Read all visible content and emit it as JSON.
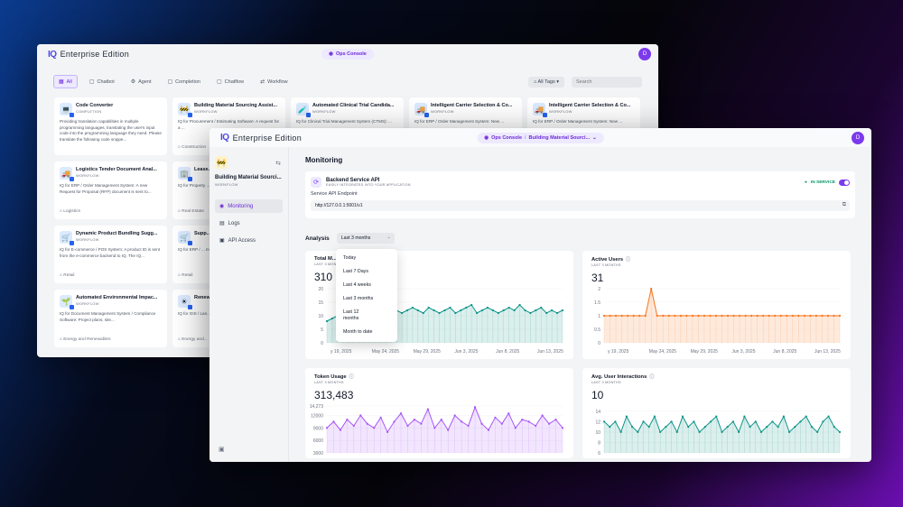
{
  "brand": {
    "logo_mark": "IQ",
    "name": "Enterprise Edition"
  },
  "back_window": {
    "console_label": "Ops Console",
    "avatar": "D",
    "tabs": [
      {
        "label": "All",
        "icon": "grid-icon",
        "active": true
      },
      {
        "label": "Chatbot",
        "icon": "chatbot-icon"
      },
      {
        "label": "Agent",
        "icon": "agent-icon"
      },
      {
        "label": "Completion",
        "icon": "completion-icon"
      },
      {
        "label": "Chatflow",
        "icon": "chatflow-icon"
      },
      {
        "label": "Workflow",
        "icon": "workflow-icon"
      }
    ],
    "tags_label": "All Tags",
    "search_placeholder": "Search",
    "cards": [
      {
        "title": "Code Converter",
        "type": "COMPLETION",
        "desc": "Providing translation capabilities in multiple programming languages, translating the user's input code into the programming language they need. Please translate the following code snippe...",
        "tag": "",
        "icon": "💻"
      },
      {
        "title": "Building Material Sourcing Assist...",
        "type": "WORKFLOW",
        "desc": "IQ for Procurement / Estimating Software: A request for a ...",
        "tag": "Construction",
        "icon": "🚧"
      },
      {
        "title": "Automated Clinical Trial Candida...",
        "type": "WORKFLOW",
        "desc": "IQ for Clinical Trial Management System (CTMS): ...",
        "tag": "",
        "icon": "🧪"
      },
      {
        "title": "Intelligent Carrier Selection & Co...",
        "type": "WORKFLOW",
        "desc": "IQ for ERP / Order Management System: New ...",
        "tag": "",
        "icon": "🚚"
      },
      {
        "title": "Intelligent Carrier Selection & Co...",
        "type": "WORKFLOW",
        "desc": "IQ for ERP / Order Management System: New ...",
        "tag": "",
        "icon": "🚚"
      },
      {
        "title": "Logistics Tender Document Anal...",
        "type": "WORKFLOW",
        "desc": "IQ for ERP / Order Management System: A new Request for Proposal (RFP) document is sent to...",
        "tag": "Logistics",
        "icon": "🚚"
      },
      {
        "title": "Lease...",
        "type": "",
        "desc": "IQ for Property ... lease (PDF) is ...",
        "tag": "Real Estate",
        "icon": "🏢"
      },
      {
        "title": "",
        "type": "",
        "desc": "",
        "tag": "",
        "icon": ""
      },
      {
        "title": "",
        "type": "",
        "desc": "",
        "tag": "",
        "icon": ""
      },
      {
        "title": "",
        "type": "",
        "desc": "",
        "tag": "",
        "icon": ""
      },
      {
        "title": "Dynamic Product Bundling Sugg...",
        "type": "WORKFLOW",
        "desc": "IQ for E-commerce / POS System: A product ID is sent from the e-commerce backend to IQ. The IQ...",
        "tag": "Retail",
        "icon": "🛒"
      },
      {
        "title": "Supp...",
        "type": "",
        "desc": "IQ for ERP / ... maintenance w...",
        "tag": "Retail",
        "icon": "🛒"
      },
      {
        "title": "",
        "type": "",
        "desc": "",
        "tag": "",
        "icon": ""
      },
      {
        "title": "",
        "type": "",
        "desc": "",
        "tag": "",
        "icon": ""
      },
      {
        "title": "",
        "type": "",
        "desc": "",
        "tag": "",
        "icon": ""
      },
      {
        "title": "Automated Environmental Impac...",
        "type": "WORKFLOW",
        "desc": "IQ for Document Management System / Compliance Software: Project plans, site...",
        "tag": "Energy and Renewables",
        "icon": "🌱"
      },
      {
        "title": "Renew...",
        "type": "",
        "desc": "IQ for GIS / Lan... requirements (s...",
        "tag": "Energy and...",
        "icon": "☀"
      }
    ]
  },
  "front_window": {
    "console_label": "Ops Console",
    "console_app": "Building Material Sourci...",
    "avatar": "D",
    "sidebar": {
      "app_name": "Building Material Sourci...",
      "app_type": "WORKFLOW",
      "items": [
        {
          "label": "Monitoring",
          "icon": "monitoring-icon",
          "active": true
        },
        {
          "label": "Logs",
          "icon": "logs-icon"
        },
        {
          "label": "API Access",
          "icon": "api-icon"
        }
      ]
    },
    "page_title": "Monitoring",
    "api": {
      "title": "Backend Service API",
      "subtitle": "EASILY INTEGRATED INTO YOUR APPLICATION",
      "status": "IN SERVICE",
      "endpoint_label": "Service API Endpoint",
      "endpoint": "http://127.0.0.1:5001/v1"
    },
    "analysis": {
      "label": "Analysis",
      "selected": "Last 3 months",
      "options": [
        "Today",
        "Last 7 Days",
        "Last 4 weeks",
        "Last 3 months",
        "Last 12 months",
        "Month to date"
      ]
    },
    "colors": {
      "accent": "#7c3aed",
      "teal": "#0d9488",
      "orange": "#f97316",
      "purple": "#a855f7"
    }
  },
  "chart_data": [
    {
      "type": "area",
      "title": "Total M...",
      "subtitle": "LAST 3 MONTHS",
      "total": "310",
      "x_ticks": [
        "y 19, 2025",
        "May 24, 2025",
        "May 29, 2025",
        "Jun 3, 2025",
        "Jun 8, 2025",
        "Jun 13, 2025"
      ],
      "y_ticks": [
        0,
        5,
        10,
        15,
        20
      ],
      "ylim": [
        0,
        20
      ],
      "values": [
        8,
        9,
        10,
        10,
        11,
        9,
        12,
        10,
        11,
        12,
        11,
        10,
        9,
        12,
        11,
        12,
        13,
        12,
        11,
        13,
        12,
        11,
        12,
        13,
        11,
        12,
        13,
        14,
        11,
        12,
        13,
        12,
        11,
        12,
        13,
        12,
        14,
        12,
        11,
        12,
        13,
        11,
        12,
        11,
        12
      ],
      "color": "#0d9488"
    },
    {
      "type": "area",
      "title": "Active Users",
      "subtitle": "LAST 3 MONTHS",
      "total": "31",
      "x_ticks": [
        "y 19, 2025",
        "May 24, 2025",
        "May 29, 2025",
        "Jun 3, 2025",
        "Jun 8, 2025",
        "Jun 13, 2025"
      ],
      "y_ticks": [
        0,
        0.5,
        1,
        1.5,
        2
      ],
      "ylim": [
        0,
        2
      ],
      "values": [
        1,
        1,
        1,
        1,
        1,
        1,
        1,
        1,
        2,
        1,
        1,
        1,
        1,
        1,
        1,
        1,
        1,
        1,
        1,
        1,
        1,
        1,
        1,
        1,
        1,
        1,
        1,
        1,
        1,
        1,
        1,
        1,
        1,
        1,
        1,
        1,
        1,
        1,
        1,
        1,
        1
      ],
      "color": "#f97316"
    },
    {
      "type": "area",
      "title": "Token Usage",
      "subtitle": "LAST 3 MONTHS",
      "total": "313,483",
      "x_ticks": [],
      "y_ticks": [
        3000,
        6000,
        9000,
        12000,
        "14,273"
      ],
      "ylim": [
        3000,
        14273
      ],
      "values": [
        9000,
        10500,
        8500,
        11000,
        9500,
        12000,
        10000,
        9000,
        11500,
        8000,
        10500,
        12500,
        9500,
        11000,
        10000,
        13500,
        9000,
        11000,
        8500,
        12000,
        10500,
        9500,
        14000,
        10000,
        8500,
        11500,
        10000,
        12500,
        9000,
        11000,
        10500,
        9500,
        12000,
        10000,
        11000,
        9000
      ],
      "color": "#a855f7"
    },
    {
      "type": "area",
      "title": "Avg. User Interactions",
      "subtitle": "LAST 3 MONTHS",
      "total": "10",
      "x_ticks": [],
      "y_ticks": [
        6,
        8,
        10,
        12,
        14
      ],
      "ylim": [
        6,
        15
      ],
      "values": [
        12,
        11,
        12,
        10,
        13,
        11,
        10,
        12,
        11,
        13,
        10,
        11,
        12,
        10,
        13,
        11,
        12,
        10,
        11,
        12,
        13,
        10,
        11,
        12,
        10,
        13,
        11,
        12,
        10,
        11,
        12,
        11,
        13,
        10,
        11,
        12,
        13,
        11,
        10,
        12,
        13,
        11,
        10
      ],
      "color": "#0d9488"
    }
  ]
}
